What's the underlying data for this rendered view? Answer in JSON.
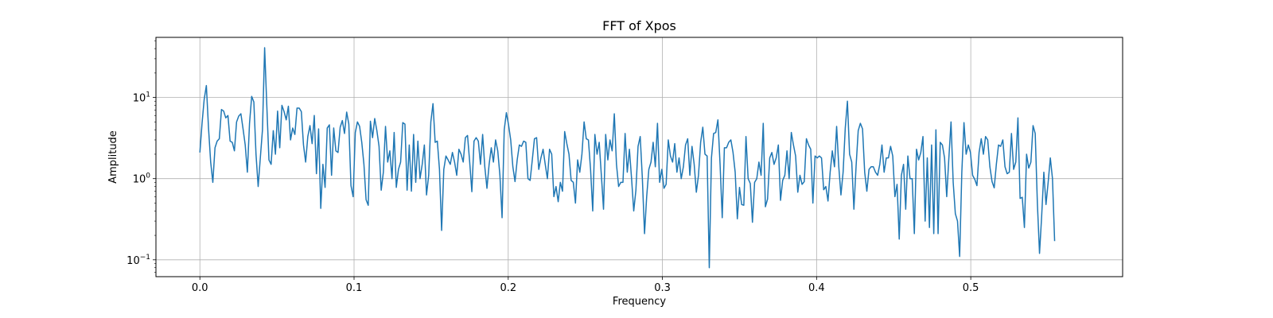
{
  "chart_data": {
    "type": "line",
    "title": "FFT of Xpos",
    "xlabel": "Frequency",
    "ylabel": "Amplitude",
    "yscale": "log",
    "xlim": [
      -0.0285,
      0.5985
    ],
    "ylim": [
      0.062,
      55
    ],
    "grid": true,
    "line_color": "#1f77b4",
    "x_ticks": [
      0.0,
      0.1,
      0.2,
      0.3,
      0.4,
      0.5
    ],
    "x_tick_labels": [
      "0.0",
      "0.1",
      "0.2",
      "0.3",
      "0.4",
      "0.5"
    ],
    "y_ticks": [
      {
        "value": 0.1,
        "base": "10",
        "exp": "−1"
      },
      {
        "value": 1,
        "base": "10",
        "exp": "0"
      },
      {
        "value": 10,
        "base": "10",
        "exp": "1"
      }
    ],
    "series": [
      {
        "x_start": 0.0,
        "x_step": 0.0014,
        "values": [
          2.1,
          4.8,
          9.5,
          14.0,
          4.2,
          1.6,
          0.9,
          2.4,
          2.9,
          3.1,
          7.1,
          6.8,
          5.6,
          6.0,
          2.9,
          2.8,
          2.2,
          5.0,
          5.9,
          6.3,
          4.1,
          2.6,
          1.2,
          4.8,
          10.3,
          8.8,
          2.0,
          0.8,
          1.8,
          4.0,
          41.0,
          8.0,
          1.7,
          1.5,
          3.9,
          2.0,
          6.8,
          2.4,
          8.0,
          6.7,
          5.3,
          7.8,
          3.0,
          4.2,
          3.5,
          7.4,
          7.4,
          6.7,
          2.6,
          1.6,
          3.3,
          4.5,
          2.7,
          6.0,
          1.15,
          4.1,
          0.43,
          1.5,
          0.78,
          4.2,
          4.6,
          1.1,
          4.2,
          2.2,
          2.1,
          4.3,
          5.2,
          3.6,
          6.6,
          4.7,
          0.82,
          0.6,
          3.7,
          5.0,
          4.4,
          2.8,
          1.5,
          0.55,
          0.47,
          5.1,
          3.2,
          5.5,
          3.9,
          2.5,
          0.72,
          1.2,
          4.4,
          1.6,
          2.2,
          1.0,
          3.7,
          0.78,
          1.3,
          1.6,
          4.9,
          4.7,
          0.72,
          2.6,
          0.7,
          3.5,
          0.9,
          2.9,
          1.0,
          1.5,
          2.6,
          0.63,
          1.1,
          5.0,
          8.4,
          2.8,
          2.9,
          1.3,
          0.23,
          1.3,
          1.9,
          1.7,
          1.5,
          2.1,
          1.6,
          1.1,
          2.3,
          2.0,
          1.6,
          3.2,
          3.4,
          1.6,
          0.69,
          2.9,
          3.2,
          2.9,
          1.5,
          3.5,
          1.4,
          0.76,
          1.5,
          2.4,
          1.6,
          3.0,
          2.2,
          1.1,
          0.33,
          4.0,
          6.5,
          4.6,
          3.0,
          1.4,
          0.92,
          1.7,
          2.6,
          2.5,
          2.9,
          2.8,
          1.0,
          0.95,
          1.7,
          3.1,
          3.2,
          1.3,
          1.8,
          2.3,
          1.5,
          1.0,
          2.3,
          2.0,
          0.6,
          0.8,
          0.52,
          0.9,
          0.7,
          3.8,
          2.7,
          2.0,
          0.95,
          0.9,
          0.5,
          1.7,
          1.2,
          2.0,
          5.0,
          3.1,
          3.0,
          1.3,
          0.4,
          3.5,
          2.0,
          2.8,
          1.1,
          0.42,
          3.5,
          1.7,
          3.0,
          2.2,
          6.3,
          1.5,
          0.8,
          0.9,
          0.9,
          3.6,
          1.2,
          2.3,
          1.0,
          0.4,
          0.72,
          2.5,
          3.3,
          1.0,
          0.21,
          0.6,
          1.3,
          1.6,
          2.8,
          1.4,
          4.8,
          0.9,
          1.3,
          0.76,
          0.85,
          3.0,
          1.9,
          1.6,
          2.7,
          1.2,
          1.8,
          1.0,
          1.4,
          2.6,
          3.1,
          1.1,
          2.5,
          1.5,
          0.68,
          1.1,
          2.8,
          4.3,
          2.0,
          1.9,
          0.08,
          1.8,
          3.6,
          3.7,
          5.3,
          1.5,
          0.33,
          2.4,
          2.4,
          2.8,
          3.0,
          2.1,
          1.2,
          0.32,
          0.78,
          0.48,
          0.47,
          3.3,
          1.0,
          0.87,
          0.29,
          0.9,
          1.0,
          1.6,
          1.1,
          4.8,
          0.45,
          0.56,
          1.8,
          2.1,
          1.5,
          1.8,
          2.6,
          0.54,
          0.95,
          1.1,
          2.2,
          1.0,
          3.7,
          2.6,
          1.9,
          0.68,
          1.1,
          0.85,
          0.92,
          3.1,
          2.6,
          2.3,
          0.5,
          1.9,
          1.8,
          1.9,
          1.8,
          0.73,
          0.8,
          0.53,
          1.2,
          2.2,
          1.4,
          4.4,
          1.4,
          0.63,
          1.2,
          4.2,
          9.0,
          2.0,
          1.6,
          0.42,
          1.4,
          3.9,
          4.8,
          4.1,
          1.2,
          0.7,
          1.3,
          1.4,
          1.4,
          1.2,
          1.1,
          1.5,
          2.6,
          1.2,
          1.8,
          1.8,
          2.5,
          1.9,
          0.6,
          0.85,
          0.18,
          1.1,
          1.5,
          0.42,
          1.9,
          1.0,
          1.0,
          0.21,
          2.3,
          1.7,
          2.1,
          3.3,
          0.3,
          1.8,
          0.25,
          2.6,
          0.21,
          4.0,
          0.21,
          2.8,
          2.6,
          1.8,
          0.6,
          1.8,
          5.0,
          0.9,
          0.37,
          0.3,
          0.11,
          1.2,
          4.9,
          2.0,
          2.6,
          2.1,
          1.1,
          0.98,
          0.82,
          2.1,
          3.1,
          2.0,
          3.3,
          3.0,
          1.4,
          0.92,
          0.77,
          1.5,
          2.6,
          2.5,
          3.0,
          1.4,
          1.15,
          1.2,
          3.6,
          1.3,
          1.6,
          5.6,
          0.57,
          0.59,
          0.25,
          2.0,
          1.35,
          1.6,
          4.5,
          3.6,
          0.5,
          0.12,
          0.35,
          1.2,
          0.48,
          0.9,
          1.8,
          1.0,
          0.17
        ]
      }
    ]
  }
}
